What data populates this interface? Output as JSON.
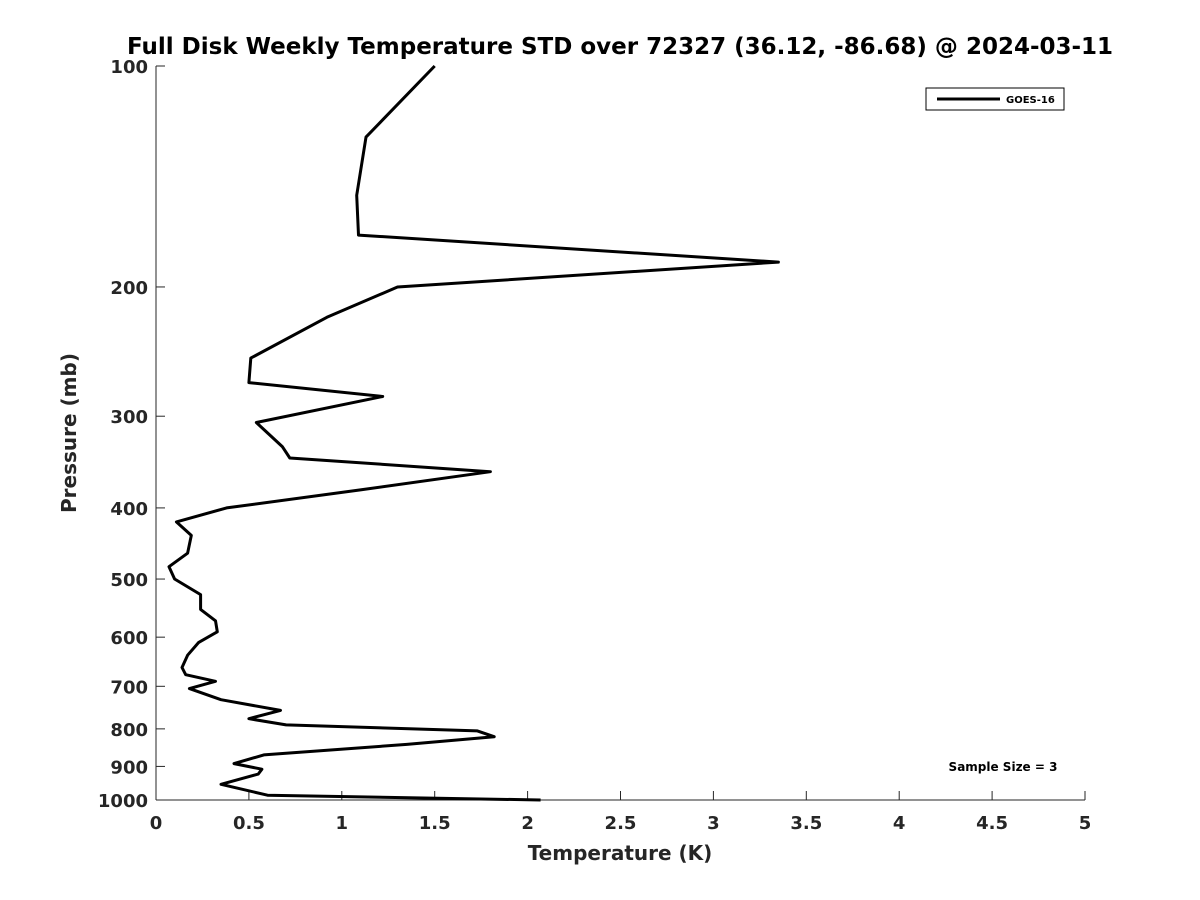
{
  "chart_data": {
    "type": "line",
    "title": "Full Disk Weekly Temperature STD over 72327 (36.12, -86.68) @ 2024-03-11",
    "xlabel": "Temperature (K)",
    "ylabel": "Pressure (mb)",
    "xlim": [
      0,
      5
    ],
    "ylim": [
      1000,
      100
    ],
    "y_scale": "log",
    "y_reversed": true,
    "xticks": [
      0,
      0.5,
      1,
      1.5,
      2,
      2.5,
      3,
      3.5,
      4,
      4.5,
      5
    ],
    "xtick_labels": [
      "0",
      "0.5",
      "1",
      "1.5",
      "2",
      "2.5",
      "3",
      "3.5",
      "4",
      "4.5",
      "5"
    ],
    "yticks": [
      100,
      200,
      300,
      400,
      500,
      600,
      700,
      800,
      900,
      1000
    ],
    "ytick_labels": [
      "100",
      "200",
      "300",
      "400",
      "500",
      "600",
      "700",
      "800",
      "900",
      "1000"
    ],
    "grid": false,
    "legend": {
      "placement": "top-right",
      "entries": [
        "GOES-16"
      ]
    },
    "annotation": "Sample Size = 3",
    "series": [
      {
        "name": "GOES-16",
        "color": "#000000",
        "points": [
          [
            1.5,
            100
          ],
          [
            1.13,
            125
          ],
          [
            1.08,
            150
          ],
          [
            1.09,
            170
          ],
          [
            3.35,
            185
          ],
          [
            1.3,
            200
          ],
          [
            0.92,
            220
          ],
          [
            0.51,
            250
          ],
          [
            0.5,
            270
          ],
          [
            1.22,
            282
          ],
          [
            0.54,
            306
          ],
          [
            0.68,
            330
          ],
          [
            0.72,
            342
          ],
          [
            1.8,
            357
          ],
          [
            1.1,
            378
          ],
          [
            0.38,
            400
          ],
          [
            0.11,
            418
          ],
          [
            0.19,
            436
          ],
          [
            0.17,
            461
          ],
          [
            0.07,
            481
          ],
          [
            0.1,
            500
          ],
          [
            0.24,
            525
          ],
          [
            0.24,
            550
          ],
          [
            0.32,
            570
          ],
          [
            0.33,
            590
          ],
          [
            0.23,
            610
          ],
          [
            0.17,
            635
          ],
          [
            0.14,
            660
          ],
          [
            0.16,
            675
          ],
          [
            0.32,
            689
          ],
          [
            0.18,
            705
          ],
          [
            0.35,
            730
          ],
          [
            0.67,
            755
          ],
          [
            0.5,
            775
          ],
          [
            0.7,
            790
          ],
          [
            1.73,
            805
          ],
          [
            1.82,
            820
          ],
          [
            1.35,
            840
          ],
          [
            0.58,
            868
          ],
          [
            0.42,
            892
          ],
          [
            0.57,
            908
          ],
          [
            0.55,
            922
          ],
          [
            0.35,
            952
          ],
          [
            0.6,
            985
          ],
          [
            2.07,
            1000
          ]
        ]
      }
    ]
  }
}
